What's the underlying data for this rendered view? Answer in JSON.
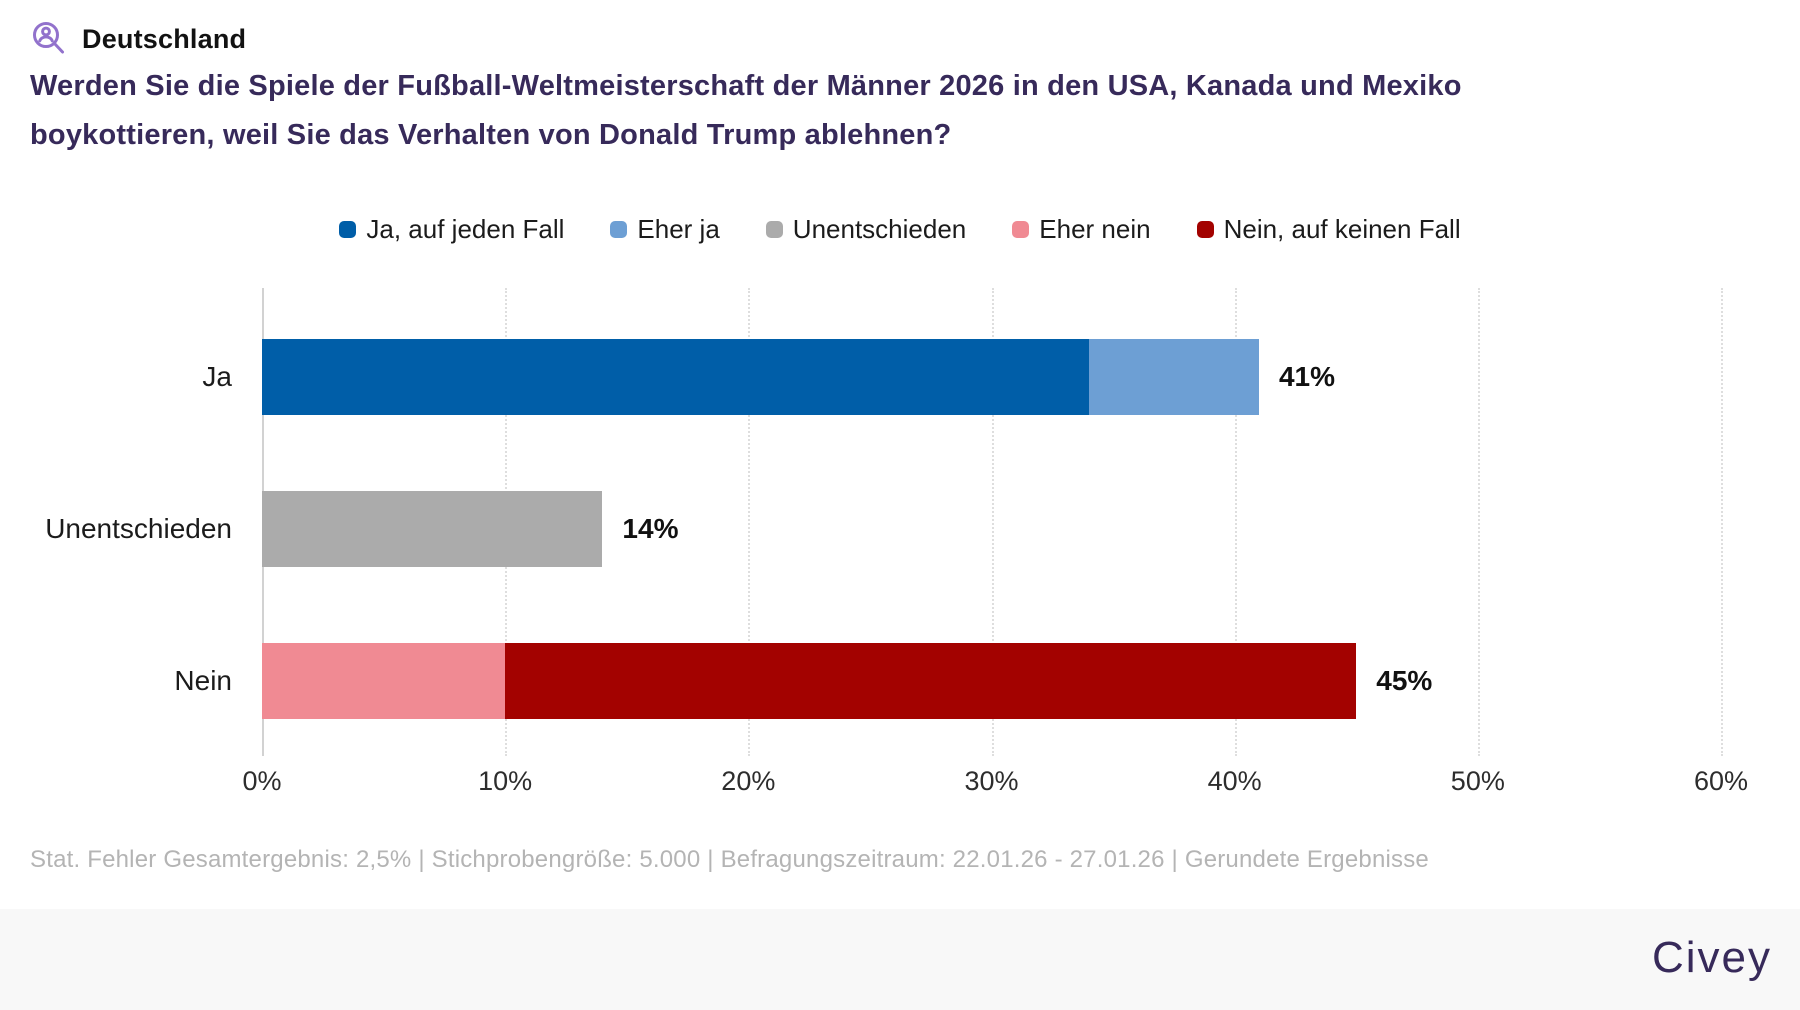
{
  "header": {
    "region_label": "Deutschland",
    "icon": "person-search-icon",
    "icon_color": "#9272cc"
  },
  "question": "Werden Sie die Spiele der Fußball-Weltmeisterschaft der Männer 2026 in den USA, Kanada und Mexiko boykottieren, weil Sie das Verhalten von Donald Trump ablehnen?",
  "chart_data": {
    "type": "bar",
    "orientation": "horizontal",
    "unit": "%",
    "xlim": [
      0,
      60
    ],
    "grid": "dotted-vertical",
    "legend_position": "top-center",
    "x_tick_labels": [
      "0%",
      "10%",
      "20%",
      "30%",
      "40%",
      "50%",
      "60%"
    ],
    "legend": [
      {
        "label": "Ja, auf jeden Fall",
        "color": "#005ea8"
      },
      {
        "label": "Eher ja",
        "color": "#6d9fd4"
      },
      {
        "label": "Unentschieden",
        "color": "#ababab"
      },
      {
        "label": "Eher nein",
        "color": "#f08a93"
      },
      {
        "label": "Nein, auf keinen Fall",
        "color": "#a30200"
      }
    ],
    "categories": [
      "Ja",
      "Unentschieden",
      "Nein"
    ],
    "rows": [
      {
        "category": "Ja",
        "total": 41,
        "total_label": "41%",
        "segments": [
          {
            "series": "Ja, auf jeden Fall",
            "value": 34
          },
          {
            "series": "Eher ja",
            "value": 7
          }
        ]
      },
      {
        "category": "Unentschieden",
        "total": 14,
        "total_label": "14%",
        "segments": [
          {
            "series": "Unentschieden",
            "value": 14
          }
        ]
      },
      {
        "category": "Nein",
        "total": 45,
        "total_label": "45%",
        "segments": [
          {
            "series": "Eher nein",
            "value": 10
          },
          {
            "series": "Nein, auf keinen Fall",
            "value": 35
          }
        ]
      }
    ]
  },
  "footer": {
    "stats_line": "Stat. Fehler Gesamtergebnis: 2,5% | Stichprobengröße: 5.000 | Befragungszeitraum: 22.01.26 - 27.01.26 | Gerundete Ergebnisse"
  },
  "branding": {
    "logo_text": "Civey",
    "color": "#372a5a"
  }
}
